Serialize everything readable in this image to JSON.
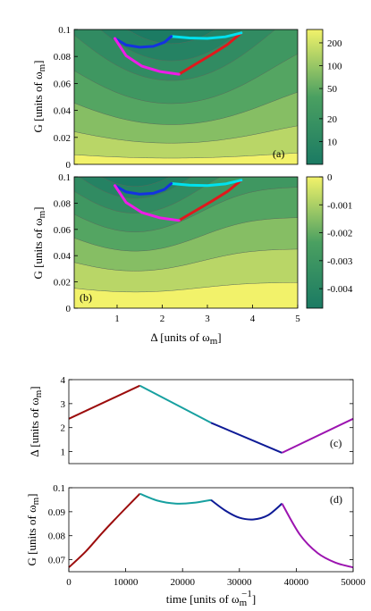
{
  "colors": {
    "map_low": "#1b7a63",
    "map_mid": "#4aa061",
    "map_high": "#f2f26a",
    "segment_1": "#9c0c0c",
    "segment_2": "#17a0a0",
    "segment_3": "#0d1a96",
    "segment_4": "#9c14b0",
    "overlay_1": "#e0181c",
    "overlay_2": "#00e1ee",
    "overlay_3": "#1432e0",
    "overlay_4": "#ee1ce8"
  },
  "chart_data": [
    {
      "id": "a",
      "type": "heatmap",
      "panel_label": "(a)",
      "xlim": [
        0.05,
        5
      ],
      "ylim": [
        0,
        0.1
      ],
      "y_ticks": [
        "0",
        "0.02",
        "0.04",
        "0.06",
        "0.08",
        "0.1"
      ],
      "ylabel": {
        "main": "G [units of ω",
        "sub": "m",
        "close": "]"
      },
      "colorbar": {
        "scale": "log",
        "ticks": [
          "200",
          "100",
          "50",
          "20",
          "10"
        ],
        "tick_values": [
          200,
          100,
          50,
          20,
          10
        ],
        "range": [
          5,
          300
        ]
      },
      "overlay": [
        {
          "name": "",
          "color_key": "overlay_1",
          "points": [
            [
              2.37,
              0.0668
            ],
            [
              2.7,
              0.0735
            ],
            [
              3.1,
              0.0815
            ],
            [
              3.45,
              0.089
            ],
            [
              3.75,
              0.0975
            ]
          ]
        },
        {
          "name": "",
          "color_key": "overlay_2",
          "points": [
            [
              2.2,
              0.0949
            ],
            [
              2.6,
              0.0937
            ],
            [
              3.0,
              0.0934
            ],
            [
              3.4,
              0.0946
            ],
            [
              3.75,
              0.0975
            ]
          ]
        },
        {
          "name": "",
          "color_key": "overlay_3",
          "points": [
            [
              0.95,
              0.0934
            ],
            [
              1.2,
              0.0885
            ],
            [
              1.5,
              0.0868
            ],
            [
              1.8,
              0.0875
            ],
            [
              2.05,
              0.0905
            ],
            [
              2.2,
              0.0949
            ]
          ]
        },
        {
          "name": "",
          "color_key": "overlay_4",
          "points": [
            [
              0.95,
              0.0934
            ],
            [
              1.2,
              0.0805
            ],
            [
              1.55,
              0.0728
            ],
            [
              1.95,
              0.0688
            ],
            [
              2.37,
              0.0668
            ]
          ]
        }
      ]
    },
    {
      "id": "b",
      "type": "heatmap",
      "panel_label": "(b)",
      "xlim": [
        0.05,
        5
      ],
      "ylim": [
        0,
        0.1
      ],
      "x_ticks": [
        "1",
        "2",
        "3",
        "4",
        "5"
      ],
      "y_ticks": [
        "0",
        "0.02",
        "0.04",
        "0.06",
        "0.08",
        "0.1"
      ],
      "xlabel": {
        "main": "Δ [units of ω",
        "sub": "m",
        "close": "]"
      },
      "ylabel": {
        "main": "G [units of ω",
        "sub": "m",
        "close": "]"
      },
      "colorbar": {
        "scale": "linear",
        "ticks": [
          "0",
          "-0.001",
          "-0.002",
          "-0.003",
          "-0.004"
        ],
        "tick_values": [
          0,
          -0.001,
          -0.002,
          -0.003,
          -0.004
        ],
        "range": [
          -0.0047,
          0
        ]
      },
      "overlay": [
        {
          "name": "",
          "color_key": "overlay_1",
          "points": [
            [
              2.37,
              0.0668
            ],
            [
              2.7,
              0.0735
            ],
            [
              3.1,
              0.0815
            ],
            [
              3.45,
              0.089
            ],
            [
              3.75,
              0.0975
            ]
          ]
        },
        {
          "name": "",
          "color_key": "overlay_2",
          "points": [
            [
              2.2,
              0.0949
            ],
            [
              2.6,
              0.0937
            ],
            [
              3.0,
              0.0934
            ],
            [
              3.4,
              0.0946
            ],
            [
              3.75,
              0.0975
            ]
          ]
        },
        {
          "name": "",
          "color_key": "overlay_3",
          "points": [
            [
              0.95,
              0.0934
            ],
            [
              1.2,
              0.0885
            ],
            [
              1.5,
              0.0868
            ],
            [
              1.8,
              0.0875
            ],
            [
              2.05,
              0.0905
            ],
            [
              2.2,
              0.0949
            ]
          ]
        },
        {
          "name": "",
          "color_key": "overlay_4",
          "points": [
            [
              0.95,
              0.0934
            ],
            [
              1.2,
              0.0805
            ],
            [
              1.55,
              0.0728
            ],
            [
              1.95,
              0.0688
            ],
            [
              2.37,
              0.0668
            ]
          ]
        }
      ]
    },
    {
      "id": "c",
      "type": "line",
      "panel_label": "(c)",
      "xlim": [
        0,
        50000
      ],
      "ylim": [
        0.5,
        4
      ],
      "y_ticks": [
        "1",
        "2",
        "3",
        "4"
      ],
      "ylabel": {
        "main": "Δ [units of ω",
        "sub": "m",
        "close": "]"
      },
      "series": [
        {
          "name": "",
          "color_key": "segment_1",
          "x": [
            0,
            12500
          ],
          "y": [
            2.37,
            3.75
          ]
        },
        {
          "name": "",
          "color_key": "segment_2",
          "x": [
            12500,
            25000
          ],
          "y": [
            3.75,
            2.2
          ]
        },
        {
          "name": "",
          "color_key": "segment_3",
          "x": [
            25000,
            37500
          ],
          "y": [
            2.2,
            0.95
          ]
        },
        {
          "name": "",
          "color_key": "segment_4",
          "x": [
            37500,
            50000
          ],
          "y": [
            0.95,
            2.37
          ]
        }
      ]
    },
    {
      "id": "d",
      "type": "line",
      "panel_label": "(d)",
      "xlim": [
        0,
        50000
      ],
      "ylim": [
        0.065,
        0.1
      ],
      "x_ticks": [
        "0",
        "10000",
        "20000",
        "30000",
        "40000",
        "50000"
      ],
      "y_ticks": [
        "0.07",
        "0.08",
        "0.09",
        "0.1"
      ],
      "xlabel": {
        "main": "time [units of ω",
        "sub": "m",
        "sup": "−1",
        "close": "]"
      },
      "ylabel": {
        "main": "G [units of ω",
        "sub": "m",
        "close": "]"
      },
      "series": [
        {
          "name": "",
          "color_key": "segment_1",
          "x": [
            0,
            3000,
            6000,
            9000,
            12500
          ],
          "y": [
            0.0668,
            0.0735,
            0.0815,
            0.089,
            0.0975
          ]
        },
        {
          "name": "",
          "color_key": "segment_2",
          "x": [
            12500,
            15625,
            18750,
            21875,
            25000
          ],
          "y": [
            0.0975,
            0.0946,
            0.0934,
            0.0937,
            0.0949
          ]
        },
        {
          "name": "",
          "color_key": "segment_3",
          "x": [
            25000,
            27500,
            30000,
            32500,
            35000,
            37500
          ],
          "y": [
            0.0949,
            0.0905,
            0.0875,
            0.0868,
            0.0885,
            0.0934
          ]
        },
        {
          "name": "",
          "color_key": "segment_4",
          "x": [
            37500,
            40625,
            43750,
            46875,
            50000
          ],
          "y": [
            0.0934,
            0.0805,
            0.0728,
            0.0688,
            0.0668
          ]
        }
      ]
    }
  ]
}
